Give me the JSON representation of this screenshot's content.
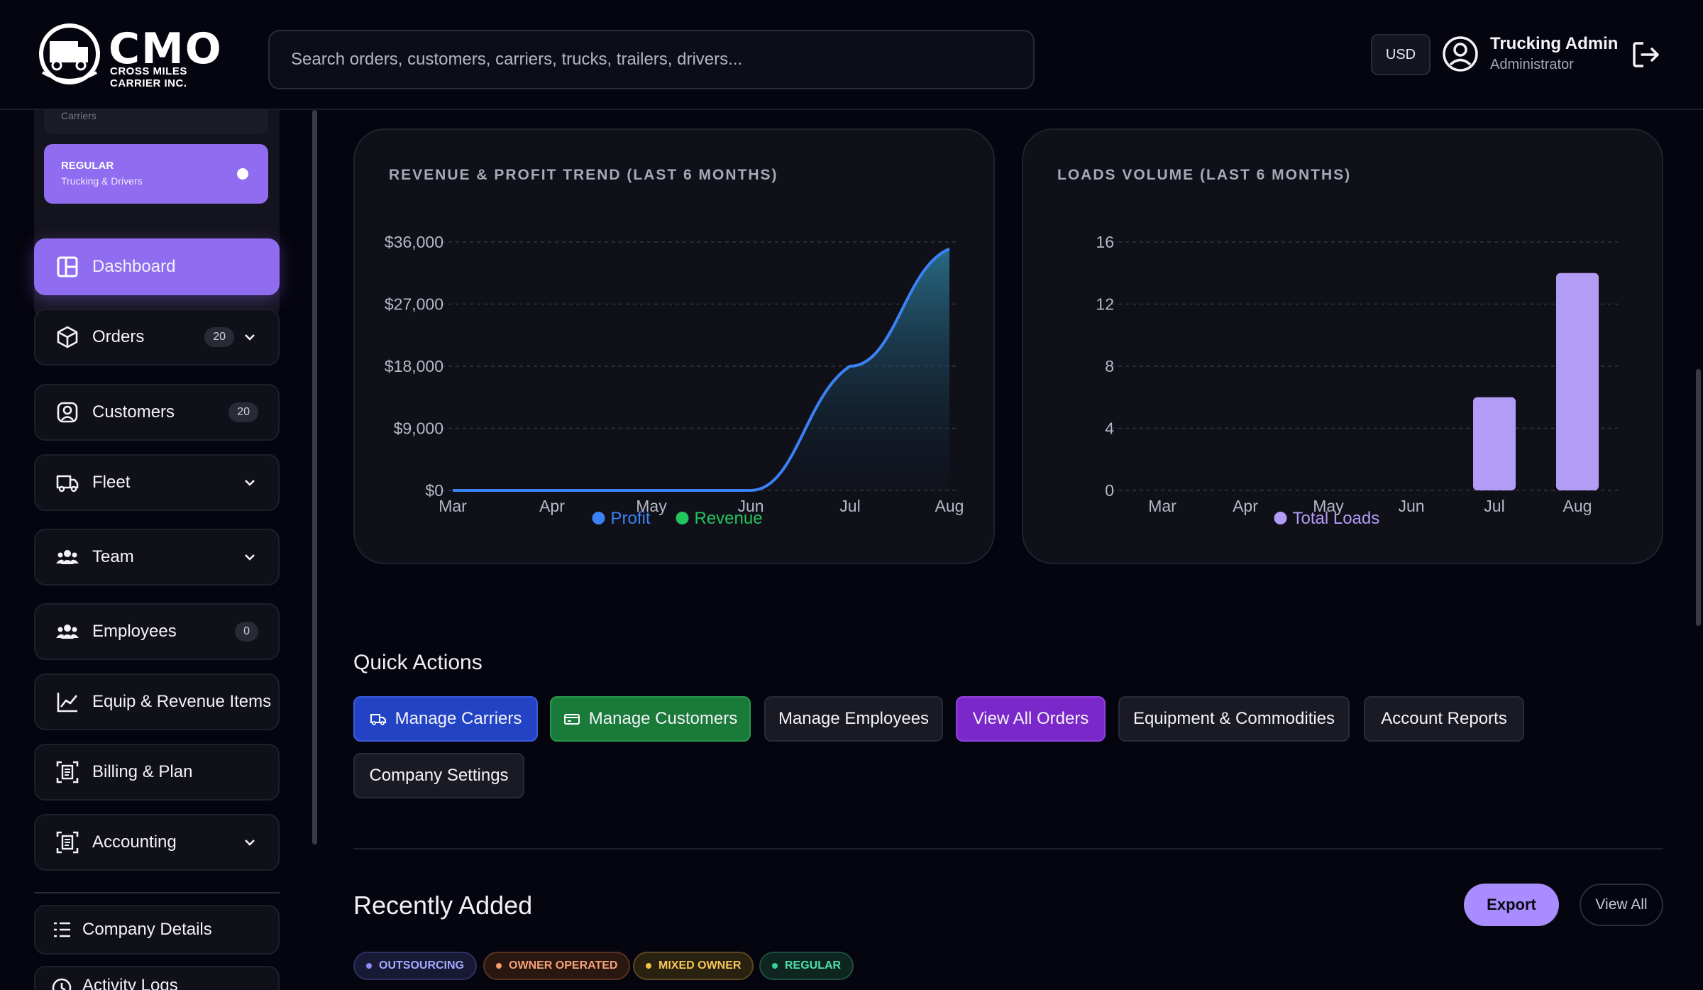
{
  "header": {
    "logo_text": "CMO",
    "logo_subtitle": "CROSS MILES CARRIER INC.",
    "search_placeholder": "Search orders, customers, carriers, trucks, trailers, drivers...",
    "currency": "USD",
    "user_name": "Trucking Admin",
    "user_role": "Administrator"
  },
  "sidebar": {
    "segment_top_label": "Carriers",
    "segment_regular": {
      "title": "REGULAR",
      "subtitle": "Trucking & Drivers"
    },
    "items": [
      {
        "label": "Dashboard",
        "icon": "dashboard-icon",
        "active": true
      },
      {
        "label": "Orders",
        "icon": "box-icon",
        "badge": "20",
        "chevron": true
      },
      {
        "label": "Customers",
        "icon": "user-circle-icon",
        "badge": "20"
      },
      {
        "label": "Fleet",
        "icon": "truck-icon",
        "chevron": true
      },
      {
        "label": "Team",
        "icon": "users-icon",
        "chevron": true
      },
      {
        "label": "Employees",
        "icon": "users-icon",
        "badge": "0"
      },
      {
        "label": "Equip & Revenue Items",
        "icon": "chart-line-icon"
      },
      {
        "label": "Billing & Plan",
        "icon": "receipt-icon"
      },
      {
        "label": "Accounting",
        "icon": "receipt-icon",
        "chevron": true
      },
      {
        "label": "Company Details",
        "icon": "list-icon"
      },
      {
        "label": "Activity Logs",
        "icon": "history-icon"
      }
    ]
  },
  "revenue_chart": {
    "title": "REVENUE & PROFIT TREND (LAST 6 MONTHS)",
    "legend": [
      "Profit",
      "Revenue"
    ],
    "colors": {
      "profit": "#3b82f6",
      "revenue": "#22c55e"
    }
  },
  "loads_chart": {
    "title": "LOADS VOLUME (LAST 6 MONTHS)",
    "legend": [
      "Total Loads"
    ],
    "color": "#b39cf5"
  },
  "chart_data": [
    {
      "type": "area",
      "title": "REVENUE & PROFIT TREND (LAST 6 MONTHS)",
      "categories": [
        "Mar",
        "Apr",
        "May",
        "Jun",
        "Jul",
        "Aug"
      ],
      "y_tick_labels": [
        "$0",
        "$9,000",
        "$18,000",
        "$27,000",
        "$36,000"
      ],
      "ylim": [
        0,
        36000
      ],
      "series": [
        {
          "name": "Profit",
          "values": [
            0,
            0,
            0,
            0,
            18000,
            35000
          ]
        },
        {
          "name": "Revenue",
          "values": [
            0,
            0,
            0,
            0,
            18000,
            35000
          ]
        }
      ],
      "legend_position": "bottom",
      "grid": true
    },
    {
      "type": "bar",
      "title": "LOADS VOLUME (LAST 6 MONTHS)",
      "categories": [
        "Mar",
        "Apr",
        "May",
        "Jun",
        "Jul",
        "Aug"
      ],
      "y_tick_labels": [
        "0",
        "4",
        "8",
        "12",
        "16"
      ],
      "ylim": [
        0,
        16
      ],
      "series": [
        {
          "name": "Total Loads",
          "values": [
            0,
            0,
            0,
            0,
            6,
            14
          ]
        }
      ],
      "legend_position": "bottom",
      "grid": true
    }
  ],
  "quick_actions": {
    "title": "Quick Actions",
    "buttons": [
      {
        "label": "Manage Carriers",
        "color": "#2343c5"
      },
      {
        "label": "Manage Customers",
        "color": "#1a7a3a"
      },
      {
        "label": "Manage Employees"
      },
      {
        "label": "View All Orders",
        "color": "#7a28c9"
      },
      {
        "label": "Equipment & Commodities"
      },
      {
        "label": "Account Reports"
      },
      {
        "label": "Company Settings"
      }
    ]
  },
  "recently_added": {
    "title": "Recently Added",
    "export_label": "Export",
    "view_all_label": "View All",
    "tags": [
      {
        "label": "OUTSOURCING",
        "color": "#8b8ff5"
      },
      {
        "label": "OWNER OPERATED",
        "color": "#f59e6b"
      },
      {
        "label": "MIXED OWNER",
        "color": "#f5c04a"
      },
      {
        "label": "REGULAR",
        "color": "#34d399"
      }
    ]
  }
}
